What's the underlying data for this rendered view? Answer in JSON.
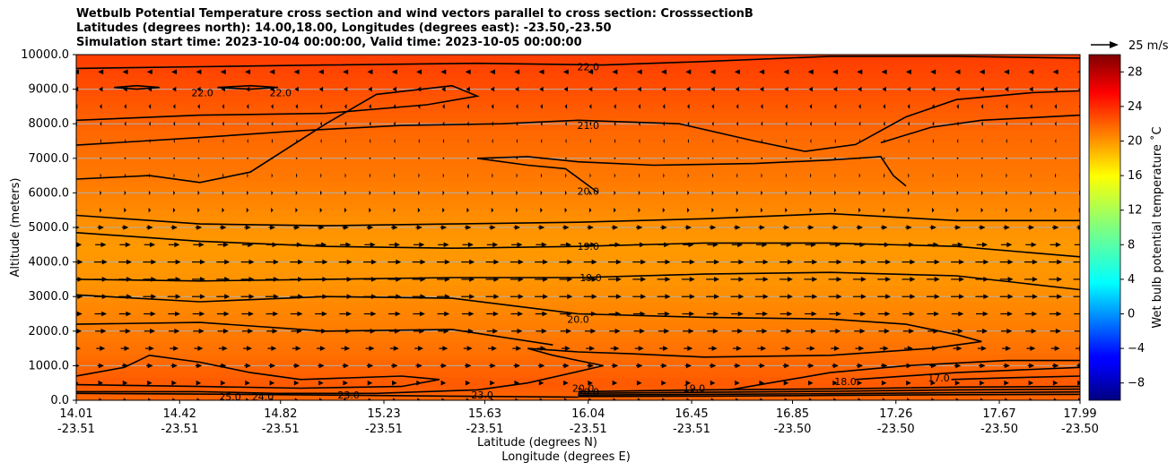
{
  "titles": {
    "line1": "Wetbulb Potential Temperature cross section and wind vectors parallel to cross section: CrosssectionB",
    "line2": "Latitudes (degrees north): 14.00,18.00, Longitudes (degrees east): -23.50,-23.50",
    "line3": "Simulation start time: 2023-10-04 00:00:00, Valid time: 2023-10-05 00:00:00"
  },
  "chart_data": {
    "type": "heatmap",
    "ylabel": "Altitude (meters)",
    "xlabel_lat": "Latitude (degrees N)",
    "xlabel_lon": "Longitude (degrees E)",
    "ylim": [
      0,
      10000
    ],
    "xlim": [
      14.01,
      17.99
    ],
    "y_ticks": [
      "0.0",
      "1000.0",
      "2000.0",
      "3000.0",
      "4000.0",
      "5000.0",
      "6000.0",
      "7000.0",
      "8000.0",
      "9000.0",
      "10000.0"
    ],
    "y_tick_values": [
      0,
      1000,
      2000,
      3000,
      4000,
      5000,
      6000,
      7000,
      8000,
      9000,
      10000
    ],
    "x_tick_values": [
      14.01,
      14.42,
      14.82,
      15.23,
      15.63,
      16.04,
      16.45,
      16.85,
      17.26,
      17.67,
      17.99
    ],
    "x_ticks_lat": [
      "14.01",
      "14.42",
      "14.82",
      "15.23",
      "15.63",
      "16.04",
      "16.45",
      "16.85",
      "17.26",
      "17.67",
      "17.99"
    ],
    "x_ticks_lon": [
      "-23.51",
      "-23.51",
      "-23.51",
      "-23.51",
      "-23.51",
      "-23.51",
      "-23.51",
      "-23.50",
      "-23.50",
      "-23.50",
      "-23.50"
    ],
    "grid": "horizontal",
    "colorbar": {
      "label": "Wet bulb potential temperature ˚C",
      "min": -10,
      "max": 30,
      "ticks": [
        "−8",
        "−4",
        "0",
        "4",
        "8",
        "12",
        "16",
        "20",
        "24",
        "28"
      ],
      "tick_values": [
        -8,
        -4,
        0,
        4,
        8,
        12,
        16,
        20,
        24,
        28
      ],
      "colormap": "jet"
    },
    "quiver_key": {
      "label": "25 m/s",
      "speed": 25
    },
    "contour_levels": [
      17,
      18,
      19,
      20,
      21,
      22,
      23,
      24,
      25
    ],
    "contour_labels": [
      {
        "text": "22.0",
        "x": 16.04,
        "y": 9650
      },
      {
        "text": "21.0",
        "x": 16.04,
        "y": 7950
      },
      {
        "text": "20.0",
        "x": 16.04,
        "y": 6050
      },
      {
        "text": "19.0",
        "x": 16.04,
        "y": 4450
      },
      {
        "text": "19.0",
        "x": 16.05,
        "y": 3550
      },
      {
        "text": "20.0",
        "x": 16.0,
        "y": 2350
      },
      {
        "text": "22.0",
        "x": 14.51,
        "y": 8900
      },
      {
        "text": "22.0",
        "x": 14.82,
        "y": 8900
      },
      {
        "text": "25.0",
        "x": 14.62,
        "y": 100
      },
      {
        "text": "24.0",
        "x": 14.75,
        "y": 100
      },
      {
        "text": "23.0",
        "x": 15.09,
        "y": 150
      },
      {
        "text": "23.0",
        "x": 15.62,
        "y": 150
      },
      {
        "text": "20.0",
        "x": 16.02,
        "y": 350
      },
      {
        "text": "20.0",
        "x": 16.04,
        "y": 250
      },
      {
        "text": "19.0",
        "x": 16.46,
        "y": 350
      },
      {
        "text": "18.0",
        "x": 17.06,
        "y": 550
      },
      {
        "text": "17.0",
        "x": 17.43,
        "y": 650
      }
    ],
    "wind_u_profile_m_s": [
      {
        "alt": 0,
        "u": 3
      },
      {
        "alt": 1000,
        "u": 6
      },
      {
        "alt": 2000,
        "u": 10
      },
      {
        "alt": 3000,
        "u": 12
      },
      {
        "alt": 4000,
        "u": 12
      },
      {
        "alt": 4500,
        "u": 10
      },
      {
        "alt": 5500,
        "u": 2
      },
      {
        "alt": 6500,
        "u": 1
      },
      {
        "alt": 7500,
        "u": -1
      },
      {
        "alt": 8500,
        "u": -2
      },
      {
        "alt": 9500,
        "u": -5
      }
    ],
    "background_values": [
      {
        "alt": 0,
        "v": 21
      },
      {
        "alt": 500,
        "v": 21.5
      },
      {
        "alt": 1500,
        "v": 20.5
      },
      {
        "alt": 2500,
        "v": 19.8
      },
      {
        "alt": 3500,
        "v": 19.2
      },
      {
        "alt": 4500,
        "v": 19.0
      },
      {
        "alt": 5500,
        "v": 19.6
      },
      {
        "alt": 6500,
        "v": 20.3
      },
      {
        "alt": 7500,
        "v": 20.8
      },
      {
        "alt": 8500,
        "v": 21.5
      },
      {
        "alt": 9500,
        "v": 22.3
      },
      {
        "alt": 10000,
        "v": 22.6
      }
    ],
    "contour_paths": [
      {
        "level": 22,
        "pts": [
          [
            14.01,
            9600
          ],
          [
            14.5,
            9650
          ],
          [
            15.0,
            9700
          ],
          [
            15.6,
            9750
          ],
          [
            16.1,
            9700
          ],
          [
            16.5,
            9800
          ],
          [
            17.0,
            9950
          ],
          [
            17.5,
            9950
          ],
          [
            17.99,
            9900
          ]
        ]
      },
      {
        "level": 22,
        "pts": [
          [
            14.16,
            9050
          ],
          [
            14.25,
            9100
          ],
          [
            14.34,
            9050
          ],
          [
            14.25,
            9000
          ],
          [
            14.16,
            9050
          ]
        ]
      },
      {
        "level": 22,
        "pts": [
          [
            14.57,
            9050
          ],
          [
            14.7,
            9100
          ],
          [
            14.81,
            9050
          ],
          [
            14.7,
            9000
          ],
          [
            14.57,
            9050
          ]
        ]
      },
      {
        "level": 21,
        "pts": [
          [
            14.01,
            7380
          ],
          [
            14.5,
            7600
          ],
          [
            14.9,
            7800
          ],
          [
            15.3,
            7950
          ],
          [
            15.7,
            8000
          ],
          [
            16.0,
            8100
          ],
          [
            16.4,
            8000
          ],
          [
            16.7,
            7500
          ],
          [
            16.9,
            7200
          ],
          [
            17.1,
            7400
          ],
          [
            17.3,
            8200
          ],
          [
            17.5,
            8700
          ],
          [
            17.8,
            8900
          ],
          [
            17.99,
            8950
          ]
        ]
      },
      {
        "level": 21,
        "pts": [
          [
            14.01,
            6400
          ],
          [
            14.3,
            6500
          ],
          [
            14.5,
            6300
          ],
          [
            14.7,
            6600
          ],
          [
            15.0,
            8000
          ],
          [
            15.2,
            8850
          ],
          [
            15.5,
            9100
          ],
          [
            15.6,
            8800
          ],
          [
            15.4,
            8550
          ],
          [
            15.0,
            8300
          ],
          [
            14.5,
            8250
          ],
          [
            14.01,
            8100
          ]
        ]
      },
      {
        "level": 21,
        "pts": [
          [
            17.2,
            7450
          ],
          [
            17.4,
            7900
          ],
          [
            17.6,
            8100
          ],
          [
            17.99,
            8250
          ]
        ]
      },
      {
        "level": 20,
        "pts": [
          [
            15.6,
            7000
          ],
          [
            15.8,
            7050
          ],
          [
            16.0,
            6900
          ],
          [
            16.3,
            6800
          ],
          [
            16.7,
            6850
          ],
          [
            17.0,
            6950
          ],
          [
            17.2,
            7050
          ],
          [
            17.25,
            6500
          ],
          [
            17.3,
            6200
          ]
        ]
      },
      {
        "level": 20,
        "pts": [
          [
            15.6,
            7000
          ],
          [
            15.8,
            6800
          ],
          [
            15.95,
            6700
          ],
          [
            16.08,
            6000
          ]
        ]
      },
      {
        "level": 20,
        "pts": [
          [
            14.01,
            5350
          ],
          [
            14.5,
            5100
          ],
          [
            15.0,
            5050
          ],
          [
            15.5,
            5100
          ],
          [
            16.0,
            5150
          ],
          [
            16.5,
            5250
          ],
          [
            17.0,
            5400
          ],
          [
            17.5,
            5200
          ],
          [
            17.99,
            5200
          ]
        ]
      },
      {
        "level": 19,
        "pts": [
          [
            14.01,
            4850
          ],
          [
            14.5,
            4600
          ],
          [
            15.0,
            4450
          ],
          [
            15.5,
            4400
          ],
          [
            16.0,
            4450
          ],
          [
            16.5,
            4550
          ],
          [
            17.0,
            4550
          ],
          [
            17.5,
            4450
          ],
          [
            17.99,
            4150
          ]
        ]
      },
      {
        "level": 19,
        "pts": [
          [
            14.01,
            3500
          ],
          [
            14.5,
            3450
          ],
          [
            15.0,
            3500
          ],
          [
            15.5,
            3550
          ],
          [
            16.0,
            3550
          ],
          [
            16.5,
            3650
          ],
          [
            17.0,
            3700
          ],
          [
            17.5,
            3600
          ],
          [
            17.99,
            3200
          ]
        ]
      },
      {
        "level": 20,
        "pts": [
          [
            14.01,
            3050
          ],
          [
            14.5,
            2850
          ],
          [
            15.0,
            3000
          ],
          [
            15.5,
            2950
          ],
          [
            16.0,
            2500
          ],
          [
            16.5,
            2400
          ],
          [
            17.0,
            2350
          ],
          [
            17.3,
            2200
          ],
          [
            17.5,
            1900
          ],
          [
            17.6,
            1700
          ],
          [
            17.4,
            1500
          ],
          [
            17.0,
            1300
          ],
          [
            16.5,
            1250
          ],
          [
            16.2,
            1350
          ],
          [
            16.0,
            1400
          ],
          [
            15.8,
            1500
          ],
          [
            15.9,
            1300
          ],
          [
            16.1,
            1000
          ],
          [
            15.8,
            500
          ],
          [
            15.6,
            300
          ],
          [
            15.2,
            200
          ],
          [
            14.8,
            200
          ],
          [
            14.5,
            250
          ],
          [
            14.01,
            250
          ]
        ]
      },
      {
        "level": 20,
        "pts": [
          [
            14.01,
            2200
          ],
          [
            14.5,
            2250
          ],
          [
            15.0,
            2000
          ],
          [
            15.5,
            2050
          ],
          [
            15.9,
            1600
          ]
        ]
      },
      {
        "level": 21,
        "pts": [
          [
            14.01,
            700
          ],
          [
            14.2,
            950
          ],
          [
            14.3,
            1300
          ],
          [
            14.5,
            1100
          ],
          [
            14.7,
            800
          ],
          [
            14.9,
            600
          ],
          [
            15.3,
            700
          ],
          [
            15.45,
            600
          ],
          [
            15.3,
            400
          ],
          [
            14.9,
            350
          ],
          [
            14.5,
            400
          ],
          [
            14.01,
            450
          ]
        ]
      },
      {
        "level": 19,
        "pts": [
          [
            16.6,
            300
          ],
          [
            17.0,
            800
          ],
          [
            17.3,
            1000
          ],
          [
            17.7,
            1150
          ],
          [
            17.99,
            1150
          ]
        ]
      },
      {
        "level": 18,
        "pts": [
          [
            17.1,
            600
          ],
          [
            17.5,
            800
          ],
          [
            17.99,
            950
          ]
        ]
      },
      {
        "level": 17,
        "pts": [
          [
            17.48,
            600
          ],
          [
            17.7,
            650
          ],
          [
            17.99,
            700
          ]
        ]
      },
      {
        "level": 18,
        "pts": [
          [
            16.0,
            250
          ],
          [
            16.5,
            300
          ],
          [
            17.0,
            330
          ],
          [
            17.5,
            380
          ],
          [
            17.99,
            400
          ]
        ]
      },
      {
        "level": 18,
        "pts": [
          [
            16.0,
            200
          ],
          [
            16.5,
            230
          ],
          [
            17.0,
            260
          ],
          [
            17.5,
            300
          ],
          [
            17.99,
            320
          ]
        ]
      },
      {
        "level": 17,
        "pts": [
          [
            16.0,
            150
          ],
          [
            16.5,
            170
          ],
          [
            17.0,
            190
          ],
          [
            17.5,
            220
          ],
          [
            17.99,
            240
          ]
        ]
      },
      {
        "level": 17,
        "pts": [
          [
            16.0,
            110
          ],
          [
            16.5,
            120
          ],
          [
            17.0,
            140
          ],
          [
            17.5,
            160
          ],
          [
            17.99,
            170
          ]
        ]
      },
      {
        "level": 25,
        "pts": [
          [
            14.01,
            200
          ],
          [
            14.5,
            180
          ],
          [
            15.0,
            150
          ],
          [
            15.5,
            120
          ],
          [
            16.0,
            90
          ]
        ]
      }
    ]
  }
}
